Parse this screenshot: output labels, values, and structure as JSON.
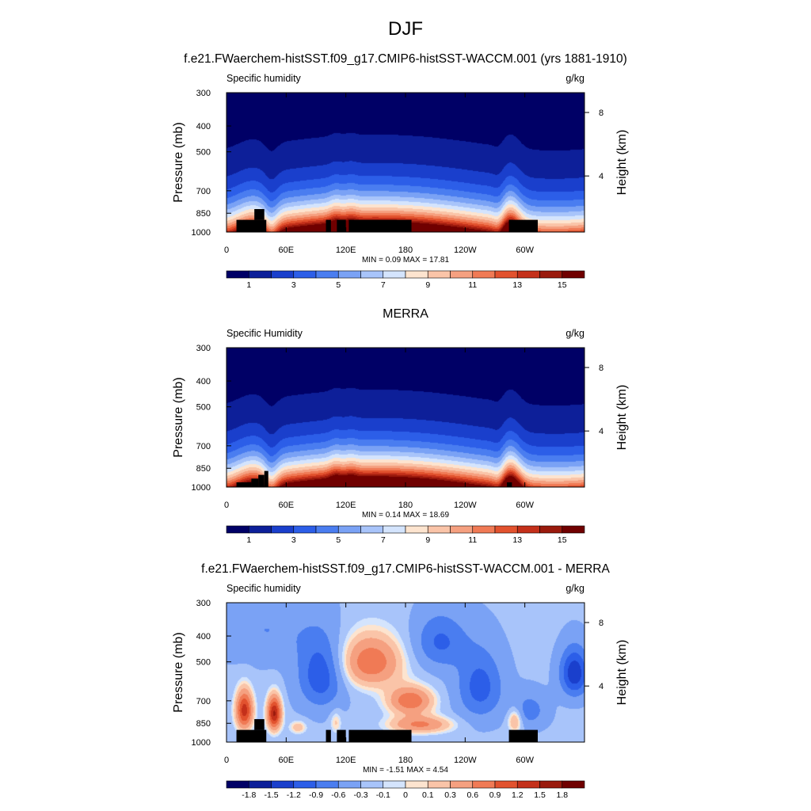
{
  "figure": {
    "title": "DJF",
    "colors": {
      "text": "#000000",
      "mask": "#000000",
      "frame": "#000000"
    }
  },
  "chart_data": [
    {
      "type": "heatmap",
      "title": "f.e21.FWaerchem-histSST.f09_g17.CMIP6-histSST-WACCM.001 (yrs 1881-1910)",
      "left_label": "Specific humidity",
      "right_label": "g/kg",
      "ylabel": "Pressure (mb)",
      "y2label": "Height (km)",
      "x_ticks": [
        "0",
        "60E",
        "120E",
        "180",
        "120W",
        "60W"
      ],
      "x_tick_lon": [
        0,
        60,
        120,
        180,
        240,
        300
      ],
      "xlim": [
        0,
        360
      ],
      "y_ticks": [
        "300",
        "400",
        "500",
        "700",
        "850",
        "1000"
      ],
      "y_tick_p": [
        300,
        400,
        500,
        700,
        850,
        1000
      ],
      "ylim": [
        300,
        1000
      ],
      "y_scale": "log",
      "y2_ticks": [
        "8",
        "4"
      ],
      "y2_tick_p": [
        356,
        616
      ],
      "stats": "MIN =   0.09  MAX =  17.81",
      "field": "humidity",
      "min": 0.09,
      "max": 17.81,
      "colorbar": {
        "labels": [
          "1",
          "3",
          "5",
          "7",
          "9",
          "11",
          "13",
          "15"
        ],
        "colors": [
          "#000066",
          "#0d1f99",
          "#1a3fcc",
          "#2c5ee8",
          "#4a7df0",
          "#7aa2f5",
          "#a8c4fa",
          "#d4e4fd",
          "#fde4cf",
          "#fac4a8",
          "#f5a080",
          "#f07a55",
          "#e2522e",
          "#c4301a",
          "#9a1a0d",
          "#700000"
        ]
      },
      "mask": [
        [
          10,
          40,
          900,
          1000
        ],
        [
          28,
          38,
          820,
          900
        ],
        [
          100,
          105,
          900,
          1000
        ],
        [
          111,
          120,
          900,
          1000
        ],
        [
          123,
          186,
          900,
          1000
        ],
        [
          284,
          313,
          900,
          1000
        ]
      ]
    },
    {
      "type": "heatmap",
      "title": "MERRA",
      "left_label": "Specific Humidity",
      "right_label": "g/kg",
      "ylabel": "Pressure (mb)",
      "y2label": "Height (km)",
      "x_ticks": [
        "0",
        "60E",
        "120E",
        "180",
        "120W",
        "60W"
      ],
      "x_tick_lon": [
        0,
        60,
        120,
        180,
        240,
        300
      ],
      "xlim": [
        0,
        360
      ],
      "y_ticks": [
        "300",
        "400",
        "500",
        "700",
        "850",
        "1000"
      ],
      "y_tick_p": [
        300,
        400,
        500,
        700,
        850,
        1000
      ],
      "ylim": [
        300,
        1000
      ],
      "y_scale": "log",
      "y2_ticks": [
        "8",
        "4"
      ],
      "y2_tick_p": [
        356,
        616
      ],
      "stats": "MIN =   0.14  MAX =  18.69",
      "field": "humidity",
      "min": 0.14,
      "max": 18.69,
      "colorbar": {
        "labels": [
          "1",
          "3",
          "5",
          "7",
          "9",
          "11",
          "13",
          "15"
        ],
        "colors": [
          "#000066",
          "#0d1f99",
          "#1a3fcc",
          "#2c5ee8",
          "#4a7df0",
          "#7aa2f5",
          "#a8c4fa",
          "#d4e4fd",
          "#fde4cf",
          "#fac4a8",
          "#f5a080",
          "#f07a55",
          "#e2522e",
          "#c4301a",
          "#9a1a0d",
          "#700000"
        ]
      },
      "mask": [
        [
          10,
          25,
          960,
          1000
        ],
        [
          25,
          32,
          930,
          1000
        ],
        [
          32,
          38,
          900,
          1000
        ],
        [
          38,
          42,
          870,
          1000
        ],
        [
          282,
          287,
          960,
          1000
        ]
      ]
    },
    {
      "type": "heatmap",
      "title": "f.e21.FWaerchem-histSST.f09_g17.CMIP6-histSST-WACCM.001 - MERRA",
      "left_label": "Specific humidity",
      "right_label": "g/kg",
      "ylabel": "Pressure (mb)",
      "y2label": "Height (km)",
      "x_ticks": [
        "0",
        "60E",
        "120E",
        "180",
        "120W",
        "60W"
      ],
      "x_tick_lon": [
        0,
        60,
        120,
        180,
        240,
        300
      ],
      "xlim": [
        0,
        360
      ],
      "y_ticks": [
        "300",
        "400",
        "500",
        "700",
        "850",
        "1000"
      ],
      "y_tick_p": [
        300,
        400,
        500,
        700,
        850,
        1000
      ],
      "ylim": [
        300,
        1000
      ],
      "y_scale": "log",
      "y2_ticks": [
        "8",
        "4"
      ],
      "y2_tick_p": [
        356,
        616
      ],
      "stats": "MIN =  -1.51  MAX =   4.54",
      "field": "difference",
      "min": -1.51,
      "max": 4.54,
      "colorbar": {
        "labels": [
          "-1.8",
          "-1.5",
          "-1.2",
          "-0.9",
          "-0.6",
          "-0.3",
          "-0.1",
          "0",
          "0.1",
          "0.3",
          "0.6",
          "0.9",
          "1.2",
          "1.5",
          "1.8"
        ],
        "colors": [
          "#000066",
          "#0d1f99",
          "#1a3fcc",
          "#2c5ee8",
          "#4a7df0",
          "#7aa2f5",
          "#a8c4fa",
          "#d4e4fd",
          "#fde4cf",
          "#fac4a8",
          "#f5a080",
          "#f07a55",
          "#e2522e",
          "#c4301a",
          "#9a1a0d",
          "#700000"
        ]
      },
      "mask": [
        [
          10,
          40,
          900,
          1000
        ],
        [
          28,
          38,
          820,
          900
        ],
        [
          100,
          105,
          900,
          1000
        ],
        [
          111,
          120,
          900,
          1000
        ],
        [
          123,
          186,
          900,
          1000
        ],
        [
          284,
          313,
          900,
          1000
        ]
      ]
    }
  ]
}
